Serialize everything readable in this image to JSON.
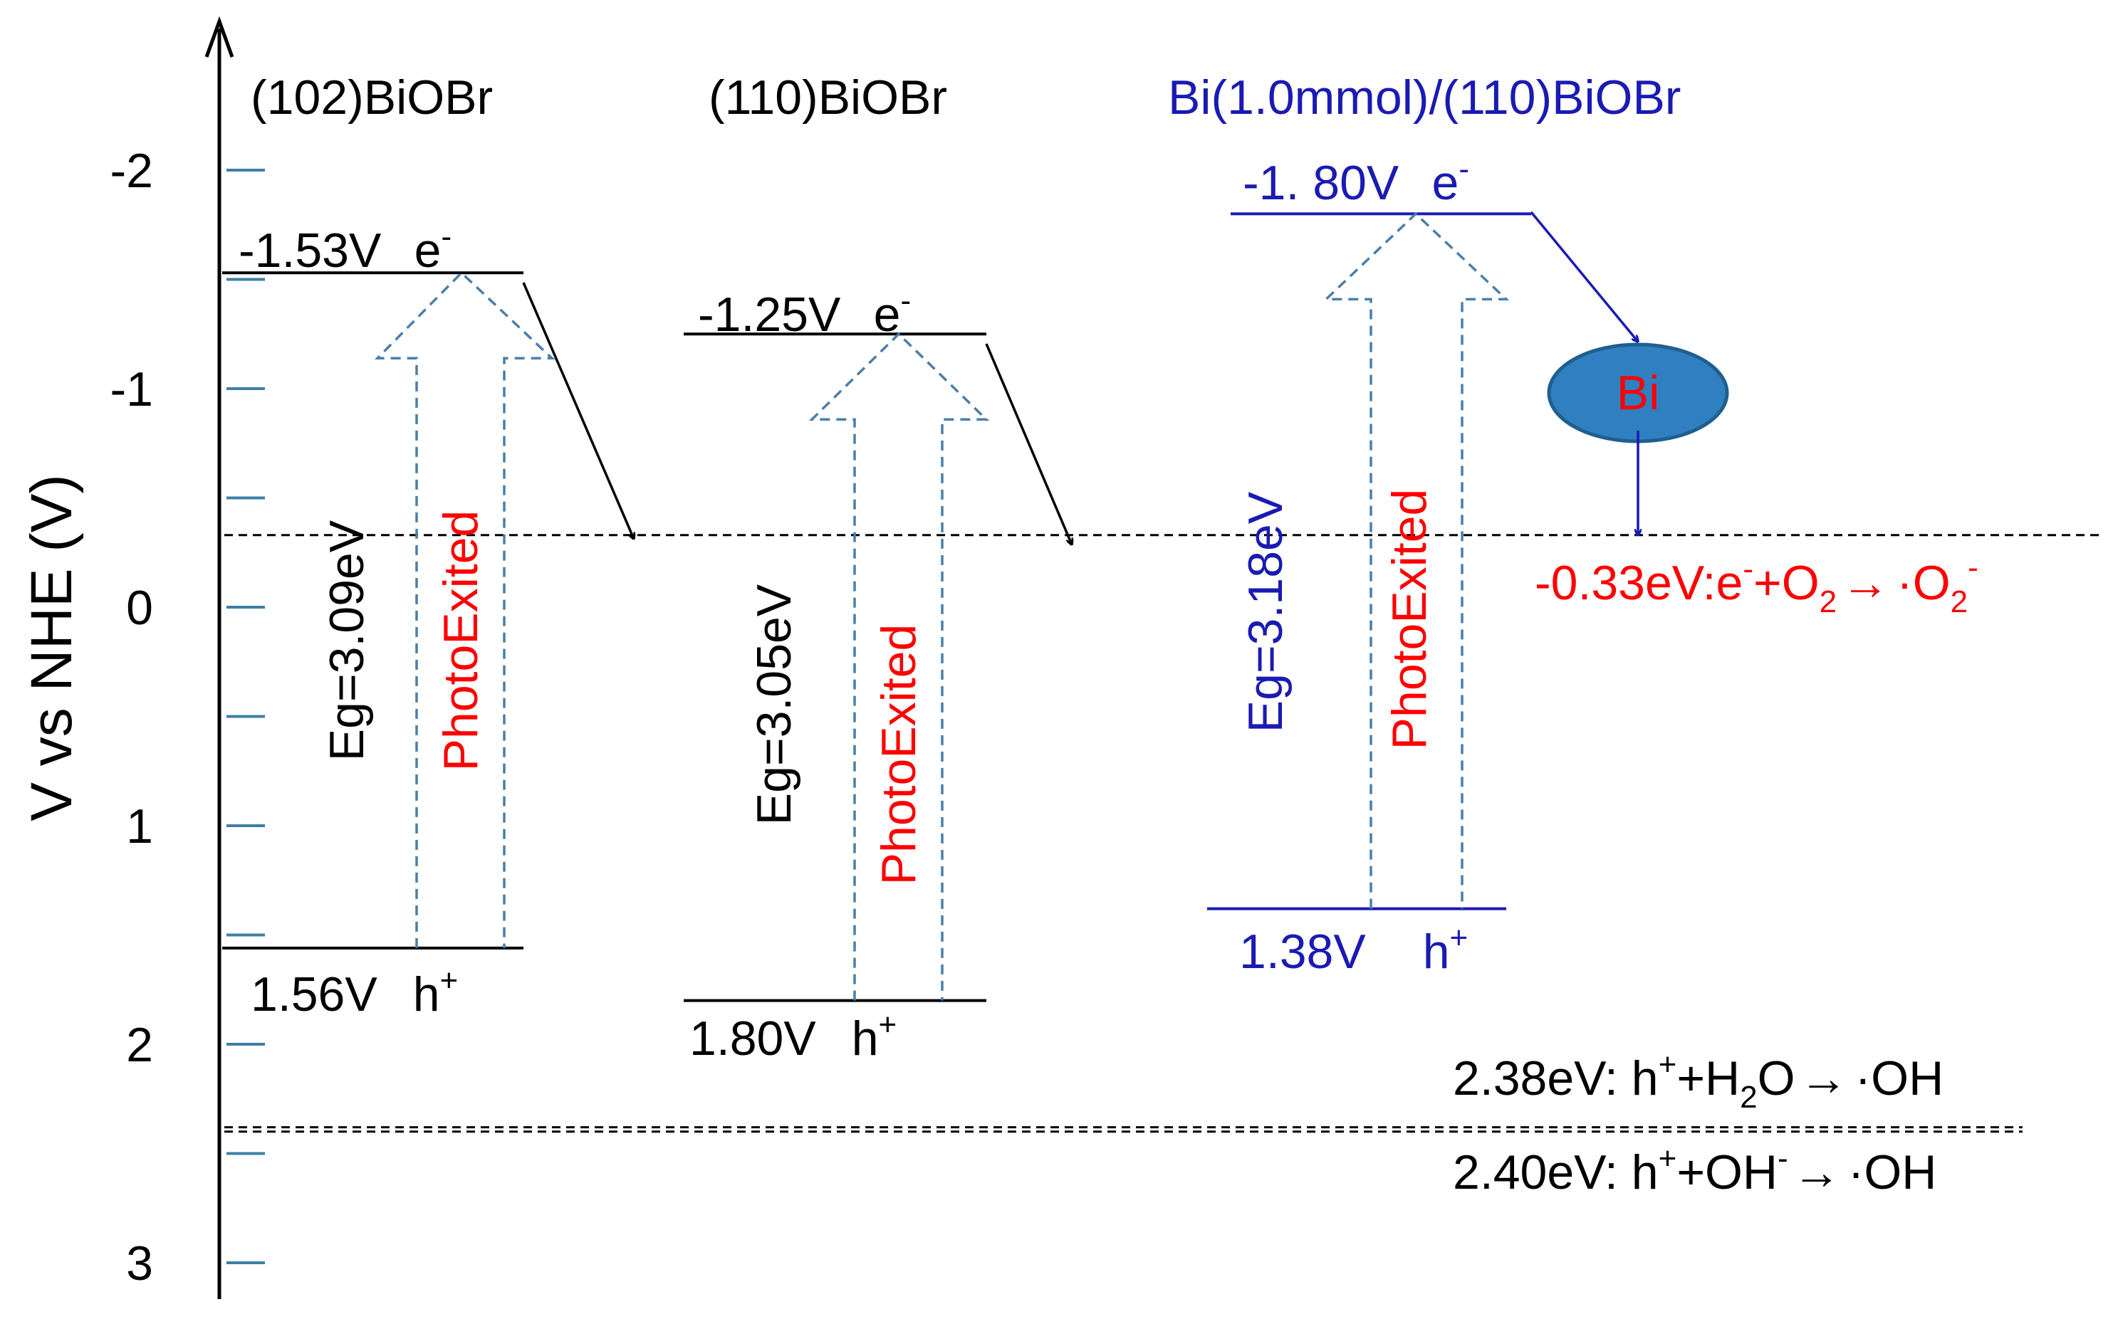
{
  "colors": {
    "black": "#000000",
    "blue": "#1a1ab4",
    "red": "#ff0000",
    "dashed_arrow": "#4a7fa8",
    "tick": "#3d7fa6",
    "bi_fill": "#2f7fc1",
    "bi_stroke": "#1f5f8f"
  },
  "axis": {
    "title": "V vs NHE (V)",
    "ticks": [
      {
        "value": -2,
        "label": "-2"
      },
      {
        "value": -1,
        "label": "-1"
      },
      {
        "value": 0,
        "label": "0"
      },
      {
        "value": 1,
        "label": "1"
      },
      {
        "value": 2,
        "label": "2"
      },
      {
        "value": 3,
        "label": "3"
      }
    ],
    "minor_ticks": [
      -2,
      -1.5,
      -1,
      -0.5,
      0,
      0.5,
      1,
      1.5,
      2,
      2.5,
      3
    ],
    "range": [
      -2.7,
      3.2
    ],
    "direction": "negative-up"
  },
  "materials": [
    {
      "id": "m102",
      "name": "(102)BiOBr",
      "color": "black",
      "cb": {
        "value": -1.53,
        "label": "-1.53V",
        "carrier": "e",
        "sup": "-"
      },
      "vb": {
        "value": 1.56,
        "label": "1.56V",
        "carrier": "h",
        "sup": "+"
      },
      "eg": "Eg=3.09eV",
      "excite": "PhotoExited"
    },
    {
      "id": "m110",
      "name": "(110)BiOBr",
      "color": "black",
      "cb": {
        "value": -1.25,
        "label": "-1.25V",
        "carrier": "e",
        "sup": "-"
      },
      "vb": {
        "value": 1.8,
        "label": "1.80V",
        "carrier": "h",
        "sup": "+"
      },
      "eg": "Eg=3.05eV",
      "excite": "PhotoExited"
    },
    {
      "id": "mbi",
      "name": "Bi(1.0mmol)/(110)BiOBr",
      "color": "blue",
      "cb": {
        "value": -1.8,
        "label": "-1. 80V",
        "carrier": "e",
        "sup": "-"
      },
      "vb": {
        "value": 1.38,
        "label": "1.38V",
        "carrier": "h",
        "sup": "+"
      },
      "eg": "Eg=3.18eV",
      "excite": "PhotoExited"
    }
  ],
  "bi_particle": {
    "label": "Bi"
  },
  "reference_levels": [
    {
      "id": "o2",
      "value": -0.33,
      "color": "red",
      "text": {
        "energy": "-0.33eV:e",
        "s1": "-",
        "mid": "+O",
        "sub": "2",
        "arrow": "→",
        "dot": "·O",
        "sub2": "2",
        "s2": "-"
      }
    },
    {
      "id": "h2o",
      "value": 2.38,
      "color": "black",
      "text": {
        "energy": "2.38eV: h",
        "s1": "+",
        "mid": "+H",
        "sub": "2",
        "tail": "O",
        "arrow": "→",
        "dot": "·OH"
      }
    },
    {
      "id": "oh",
      "value": 2.4,
      "color": "black",
      "text": {
        "energy": "2.40eV: h",
        "s1": "+",
        "mid": "+OH",
        "s2": "-",
        "arrow": "→",
        "dot": "·OH"
      }
    }
  ]
}
